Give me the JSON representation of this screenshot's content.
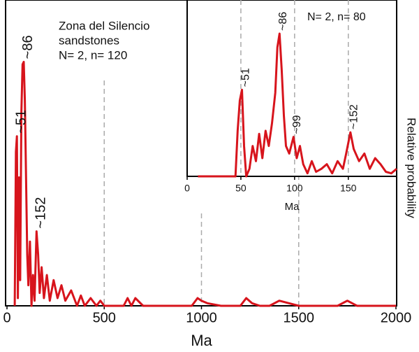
{
  "chart_data": [
    {
      "type": "line",
      "color": "#d7141c",
      "text_lines": [
        "Zona del Silencio",
        "sandstones",
        "N= 2, n= 120"
      ],
      "x_label": "Ma",
      "y_label": "Relative probability",
      "xlim": [
        0,
        2000
      ],
      "xticks": [
        0,
        500,
        1000,
        1500,
        2000
      ],
      "ylim": [
        0,
        100
      ],
      "reference_lines": [
        500,
        1000,
        1500
      ],
      "annotations": [
        {
          "text": "~51",
          "x": 51
        },
        {
          "text": "~86",
          "x": 86
        },
        {
          "text": "~152",
          "x": 152
        }
      ],
      "x": [
        40,
        46,
        51,
        56,
        62,
        68,
        74,
        80,
        86,
        92,
        98,
        104,
        110,
        118,
        126,
        134,
        142,
        152,
        160,
        168,
        178,
        190,
        205,
        220,
        240,
        260,
        280,
        300,
        330,
        360,
        380,
        400,
        430,
        460,
        480,
        500,
        560,
        600,
        620,
        640,
        660,
        700,
        800,
        900,
        950,
        980,
        1000,
        1030,
        1100,
        1200,
        1230,
        1260,
        1300,
        1350,
        1400,
        1450,
        1500,
        1600,
        1700,
        1750,
        1800,
        1900,
        2000
      ],
      "values": [
        0,
        60,
        66,
        3,
        50,
        10,
        75,
        94,
        95,
        80,
        50,
        20,
        8,
        25,
        0,
        12,
        2,
        29,
        20,
        5,
        15,
        3,
        12,
        2,
        10,
        3,
        8,
        2,
        6,
        0,
        4,
        0,
        3,
        0,
        2,
        0,
        0,
        0,
        3,
        0,
        3,
        0,
        0,
        0,
        0,
        3,
        2,
        1,
        0,
        0,
        3,
        1,
        0,
        0,
        2,
        1,
        0,
        0,
        0,
        2,
        0,
        0,
        0
      ]
    },
    {
      "type": "line",
      "color": "#d7141c",
      "text_lines": [
        "N= 2, n= 80"
      ],
      "x_label": "Ma",
      "xlim": [
        0,
        195
      ],
      "xticks": [
        0,
        50,
        100,
        150
      ],
      "ylim": [
        0,
        100
      ],
      "reference_lines": [
        50,
        100,
        150
      ],
      "annotations": [
        {
          "text": "~51",
          "x": 51
        },
        {
          "text": "~86",
          "x": 86
        },
        {
          "text": "~99",
          "x": 99
        },
        {
          "text": "~152",
          "x": 152
        }
      ],
      "x": [
        10,
        45,
        47,
        49,
        51,
        53,
        55,
        58,
        61,
        64,
        67,
        70,
        73,
        76,
        79,
        82,
        84,
        86,
        88,
        90,
        92,
        95,
        99,
        102,
        105,
        108,
        112,
        116,
        120,
        125,
        130,
        135,
        140,
        145,
        148,
        152,
        155,
        160,
        165,
        170,
        175,
        180,
        185,
        190,
        195
      ],
      "values": [
        0,
        0,
        30,
        50,
        57,
        20,
        0,
        5,
        20,
        10,
        28,
        12,
        30,
        20,
        35,
        55,
        85,
        94,
        70,
        40,
        20,
        15,
        26,
        12,
        20,
        8,
        2,
        10,
        3,
        5,
        8,
        2,
        10,
        5,
        15,
        29,
        18,
        10,
        15,
        5,
        12,
        8,
        3,
        2,
        5
      ]
    }
  ]
}
